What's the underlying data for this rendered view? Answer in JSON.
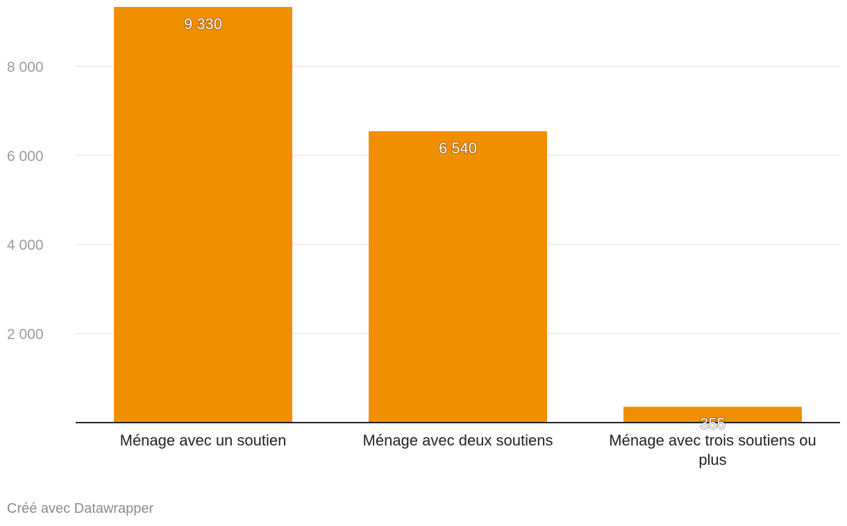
{
  "chart_data": {
    "type": "bar",
    "categories": [
      "Ménage avec un soutien",
      "Ménage avec deux soutiens",
      "Ménage avec trois soutiens ou plus"
    ],
    "values": [
      9330,
      6540,
      355
    ],
    "value_labels": [
      "9 330",
      "6 540",
      "355"
    ],
    "ylim": [
      0,
      9330
    ],
    "yticks": [
      2000,
      4000,
      6000,
      8000
    ],
    "ytick_labels": [
      "2 000",
      "4 000",
      "6 000",
      "8 000"
    ],
    "grid": true,
    "bar_color": "#f08f00"
  },
  "footer": "Créé avec Datawrapper"
}
